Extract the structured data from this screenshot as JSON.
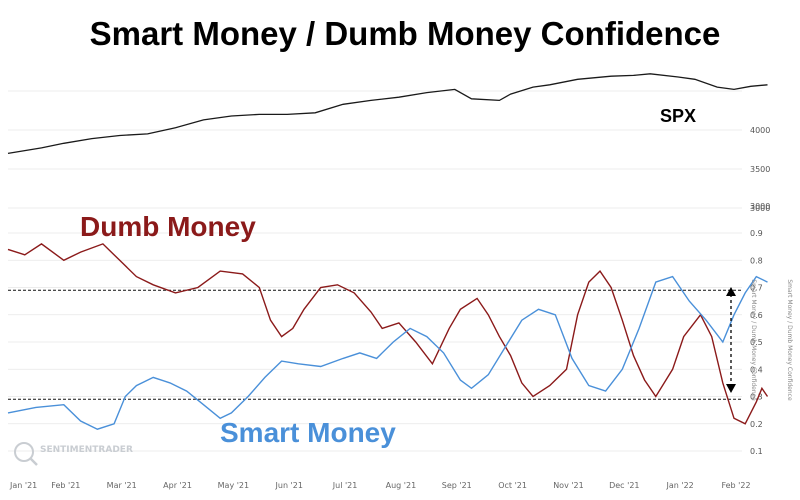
{
  "chart_data": [
    {
      "type": "line",
      "title": "Smart Money / Dumb Money Confidence",
      "panel": "top",
      "ylabel": "SPX",
      "yticks": [
        3000,
        3500,
        4000
      ],
      "ylim": [
        2800,
        4900
      ],
      "series": [
        {
          "name": "SPX",
          "color": "#1a1a1a",
          "points": [
            [
              0,
              3700
            ],
            [
              0.6,
              3770
            ],
            [
              1.0,
              3830
            ],
            [
              1.5,
              3890
            ],
            [
              2.0,
              3930
            ],
            [
              2.5,
              3950
            ],
            [
              3.0,
              4030
            ],
            [
              3.5,
              4130
            ],
            [
              4.0,
              4180
            ],
            [
              4.5,
              4200
            ],
            [
              5.0,
              4200
            ],
            [
              5.5,
              4220
            ],
            [
              6.0,
              4330
            ],
            [
              6.5,
              4380
            ],
            [
              7.0,
              4420
            ],
            [
              7.5,
              4480
            ],
            [
              8.0,
              4520
            ],
            [
              8.3,
              4400
            ],
            [
              8.8,
              4380
            ],
            [
              9.0,
              4460
            ],
            [
              9.4,
              4550
            ],
            [
              9.7,
              4580
            ],
            [
              10.2,
              4650
            ],
            [
              10.8,
              4690
            ],
            [
              11.2,
              4700
            ],
            [
              11.5,
              4720
            ],
            [
              12.0,
              4680
            ],
            [
              12.3,
              4650
            ],
            [
              12.7,
              4550
            ],
            [
              13.0,
              4520
            ],
            [
              13.3,
              4560
            ],
            [
              13.6,
              4580
            ]
          ]
        }
      ]
    },
    {
      "type": "line",
      "panel": "bottom",
      "x": [
        "Jan '21",
        "Feb '21",
        "Mar '21",
        "Apr '21",
        "May '21",
        "Jun '21",
        "Jul '21",
        "Aug '21",
        "Sep '21",
        "Oct '21",
        "Nov '21",
        "Dec '21",
        "Jan '22",
        "Feb '22"
      ],
      "yticks": [
        0.1,
        0.2,
        0.3,
        0.4,
        0.5,
        0.6,
        0.7,
        0.8,
        0.9
      ],
      "ylim": [
        0.1,
        0.9
      ],
      "upper_axis_extra_label": 3000,
      "right_axis_label": "Smart Money / Dumb Money Confidence",
      "reference_lines": [
        0.29,
        0.69
      ],
      "series": [
        {
          "name": "Dumb Money",
          "color": "#8b1a1a",
          "points": [
            [
              0,
              0.84
            ],
            [
              0.3,
              0.82
            ],
            [
              0.6,
              0.86
            ],
            [
              1.0,
              0.8
            ],
            [
              1.3,
              0.83
            ],
            [
              1.7,
              0.86
            ],
            [
              2.0,
              0.8
            ],
            [
              2.3,
              0.74
            ],
            [
              2.6,
              0.71
            ],
            [
              3.0,
              0.68
            ],
            [
              3.4,
              0.7
            ],
            [
              3.8,
              0.76
            ],
            [
              4.2,
              0.75
            ],
            [
              4.5,
              0.7
            ],
            [
              4.7,
              0.58
            ],
            [
              4.9,
              0.52
            ],
            [
              5.1,
              0.55
            ],
            [
              5.3,
              0.62
            ],
            [
              5.6,
              0.7
            ],
            [
              5.9,
              0.71
            ],
            [
              6.2,
              0.68
            ],
            [
              6.5,
              0.61
            ],
            [
              6.7,
              0.55
            ],
            [
              7.0,
              0.57
            ],
            [
              7.3,
              0.5
            ],
            [
              7.6,
              0.42
            ],
            [
              7.9,
              0.55
            ],
            [
              8.1,
              0.62
            ],
            [
              8.4,
              0.66
            ],
            [
              8.6,
              0.6
            ],
            [
              8.8,
              0.52
            ],
            [
              9.0,
              0.45
            ],
            [
              9.2,
              0.35
            ],
            [
              9.4,
              0.3
            ],
            [
              9.7,
              0.34
            ],
            [
              10.0,
              0.4
            ],
            [
              10.2,
              0.6
            ],
            [
              10.4,
              0.72
            ],
            [
              10.6,
              0.76
            ],
            [
              10.8,
              0.7
            ],
            [
              11.0,
              0.58
            ],
            [
              11.2,
              0.45
            ],
            [
              11.4,
              0.36
            ],
            [
              11.6,
              0.3
            ],
            [
              11.9,
              0.4
            ],
            [
              12.1,
              0.52
            ],
            [
              12.4,
              0.6
            ],
            [
              12.6,
              0.52
            ],
            [
              12.8,
              0.35
            ],
            [
              13.0,
              0.22
            ],
            [
              13.2,
              0.2
            ],
            [
              13.4,
              0.28
            ],
            [
              13.5,
              0.33
            ],
            [
              13.6,
              0.3
            ]
          ]
        },
        {
          "name": "Smart Money",
          "color": "#4a90d9",
          "points": [
            [
              0,
              0.24
            ],
            [
              0.5,
              0.26
            ],
            [
              1.0,
              0.27
            ],
            [
              1.3,
              0.21
            ],
            [
              1.6,
              0.18
            ],
            [
              1.9,
              0.2
            ],
            [
              2.1,
              0.3
            ],
            [
              2.3,
              0.34
            ],
            [
              2.6,
              0.37
            ],
            [
              2.9,
              0.35
            ],
            [
              3.2,
              0.32
            ],
            [
              3.5,
              0.27
            ],
            [
              3.8,
              0.22
            ],
            [
              4.0,
              0.24
            ],
            [
              4.3,
              0.3
            ],
            [
              4.6,
              0.37
            ],
            [
              4.9,
              0.43
            ],
            [
              5.2,
              0.42
            ],
            [
              5.6,
              0.41
            ],
            [
              6.0,
              0.44
            ],
            [
              6.3,
              0.46
            ],
            [
              6.6,
              0.44
            ],
            [
              6.9,
              0.5
            ],
            [
              7.2,
              0.55
            ],
            [
              7.5,
              0.52
            ],
            [
              7.8,
              0.46
            ],
            [
              8.1,
              0.36
            ],
            [
              8.3,
              0.33
            ],
            [
              8.6,
              0.38
            ],
            [
              8.9,
              0.48
            ],
            [
              9.2,
              0.58
            ],
            [
              9.5,
              0.62
            ],
            [
              9.8,
              0.6
            ],
            [
              10.1,
              0.44
            ],
            [
              10.4,
              0.34
            ],
            [
              10.7,
              0.32
            ],
            [
              11.0,
              0.4
            ],
            [
              11.3,
              0.55
            ],
            [
              11.6,
              0.72
            ],
            [
              11.9,
              0.74
            ],
            [
              12.2,
              0.65
            ],
            [
              12.5,
              0.58
            ],
            [
              12.8,
              0.5
            ],
            [
              13.0,
              0.6
            ],
            [
              13.2,
              0.68
            ],
            [
              13.4,
              0.74
            ],
            [
              13.6,
              0.72
            ]
          ]
        }
      ]
    }
  ],
  "annotations": {
    "spx_label": "SPX",
    "dumb_money_label": "Dumb Money",
    "smart_money_label": "Smart Money"
  },
  "watermark": {
    "text": "SENTIMENTRADER"
  }
}
